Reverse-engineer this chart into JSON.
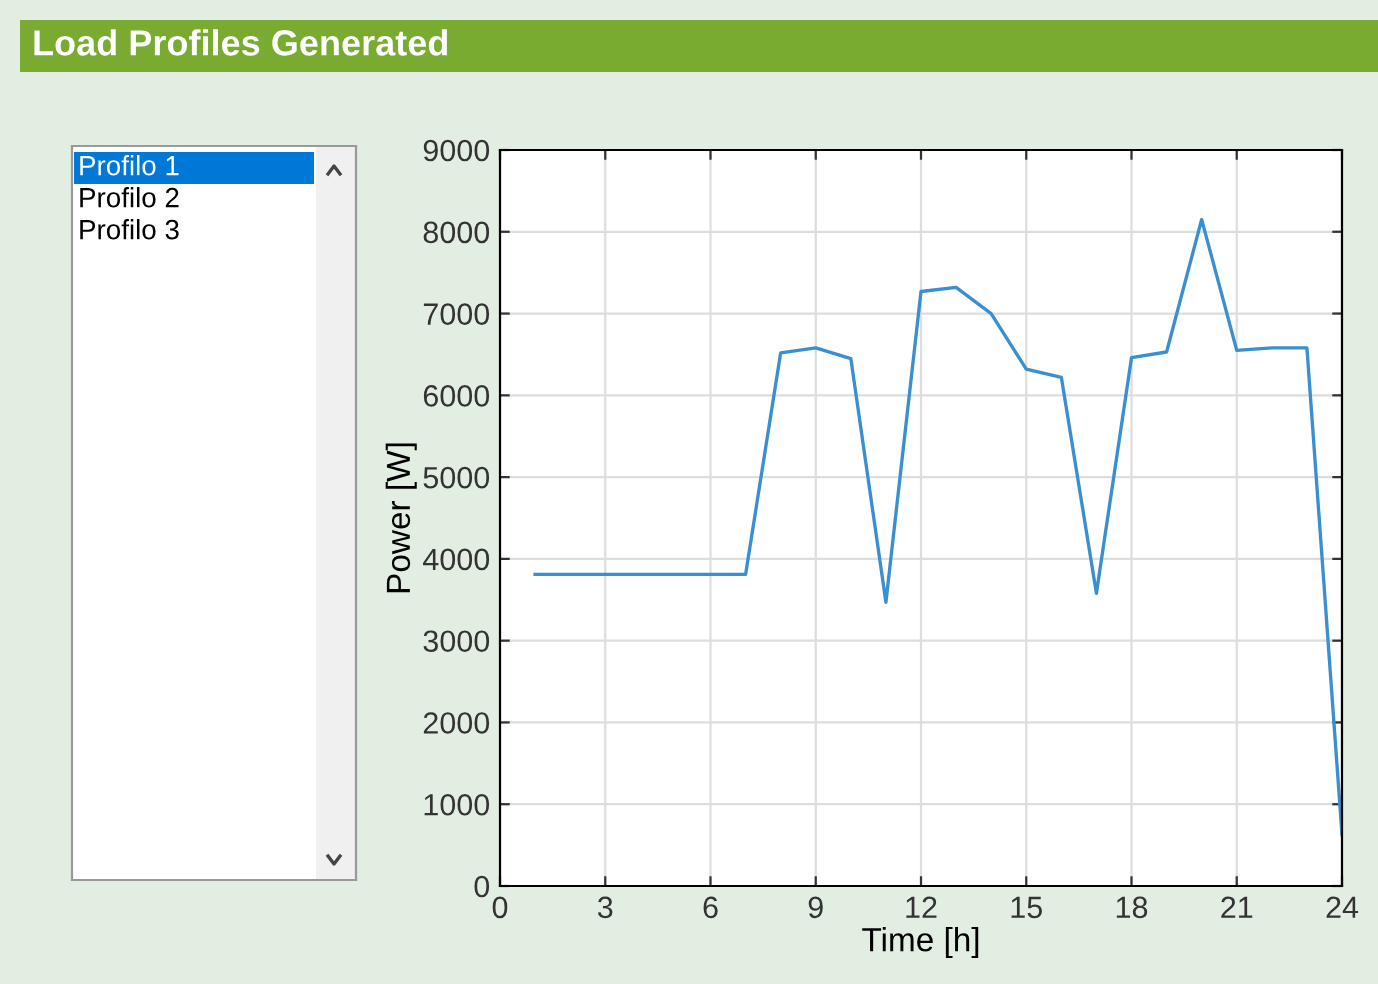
{
  "chart_data": [
    {
      "type": "other",
      "title": "Load Profiles Generated",
      "annotations": [
        "Profilo 1",
        "Profilo 2",
        "Profilo 3"
      ]
    },
    {
      "type": "line",
      "xlabel": "Time [h]",
      "ylabel": "Power [W]",
      "x": [
        1,
        2,
        3,
        4,
        5,
        6,
        7,
        8,
        9,
        10,
        11,
        12,
        13,
        14,
        15,
        16,
        17,
        18,
        19,
        20,
        21,
        22,
        23,
        24
      ],
      "series": [
        {
          "color": "#3a8fd0",
          "values": [
            3810,
            3810,
            3810,
            3810,
            3810,
            3810,
            3810,
            6520,
            6580,
            6450,
            3470,
            7270,
            7320,
            7000,
            6320,
            6220,
            3580,
            6460,
            6530,
            8150,
            6550,
            6580,
            6580,
            630
          ]
        }
      ],
      "xlim": [
        0,
        24
      ],
      "xticks": [
        0,
        3,
        6,
        9,
        12,
        15,
        18,
        21,
        24
      ],
      "ylim": [
        0,
        9000
      ],
      "yticks": [
        0,
        1000,
        2000,
        3000,
        4000,
        5000,
        6000,
        7000,
        8000,
        9000
      ],
      "grid": true,
      "legend": false
    }
  ]
}
